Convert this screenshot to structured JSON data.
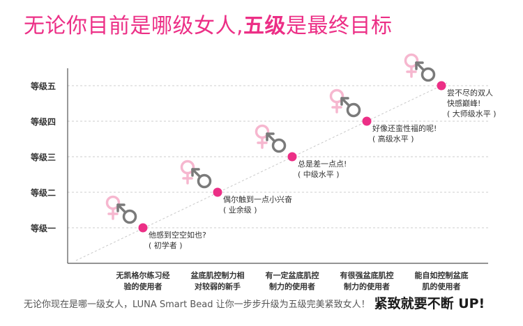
{
  "headline": {
    "part1": "无论你目前是哪级女人,",
    "part2": "五级",
    "part3": "是最终目标"
  },
  "footer": {
    "text": "无论你现在是哪一级女人，LUNA Smart Bead 让你一步步升级为五级完美紧致女人！",
    "slogan": "紧致就要不断 UP!"
  },
  "colors": {
    "accent": "#ec2f86",
    "female_symbol": "#f6b7cf",
    "male_symbol": "#7a7a7a",
    "axis": "#555555",
    "grid": "#cccccc",
    "text": "#333333"
  },
  "icons": [
    "female-symbol-icon",
    "male-symbol-icon"
  ],
  "chart_data": {
    "type": "scatter",
    "y_ticks": [
      "等级一",
      "等级二",
      "等级三",
      "等级四",
      "等级五"
    ],
    "x_categories": [
      [
        "无凯格尔练习经",
        "验的使用者"
      ],
      [
        "盆底肌控制力相",
        "对较弱的新手"
      ],
      [
        "有一定盆底肌控",
        "制力的使用者"
      ],
      [
        "有很强盆底肌控",
        "制力的使用者"
      ],
      [
        "能自如控制盆底",
        "肌的使用者"
      ]
    ],
    "points": [
      {
        "level": 1,
        "annotation": [
          "他感到空空如也?",
          "( 初学者 )"
        ]
      },
      {
        "level": 2,
        "annotation": [
          "偶尔触到一点小兴奋",
          "( 业余级 )"
        ]
      },
      {
        "level": 3,
        "annotation": [
          "总是差一点点!",
          "( 中级水平 )"
        ]
      },
      {
        "level": 4,
        "annotation": [
          "好像还蛮性福的呢!",
          "( 高级水平 )"
        ]
      },
      {
        "level": 5,
        "annotation": [
          "尝不尽的双人",
          "快感巅峰!",
          "( 大师级水平 )"
        ]
      }
    ],
    "grid": true,
    "trend_line": "dashed"
  }
}
